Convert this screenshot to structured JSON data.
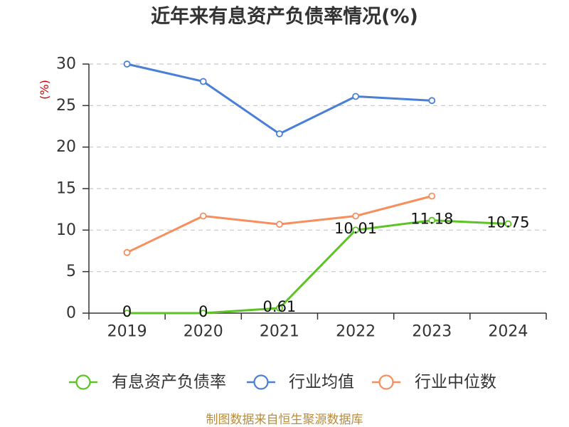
{
  "source_note": "制图数据来自恒生聚源数据库",
  "chart_data": {
    "type": "line",
    "title": "近年来有息资产负债率情况(%)",
    "xlabel": "",
    "ylabel": "(%)",
    "categories": [
      "2019",
      "2020",
      "2021",
      "2022",
      "2023",
      "2024"
    ],
    "ylim": [
      0,
      30
    ],
    "yticks": [
      0,
      5,
      10,
      15,
      20,
      25,
      30
    ],
    "grid": true,
    "legend_position": "bottom",
    "series": [
      {
        "name": "有息资产负债率",
        "color": "#5bc424",
        "show_labels": true,
        "values": [
          0,
          0,
          0.61,
          10.01,
          11.18,
          10.75
        ]
      },
      {
        "name": "行业均值",
        "color": "#4a7fd8",
        "show_labels": false,
        "values": [
          30,
          27.9,
          21.6,
          26.1,
          25.6,
          null
        ]
      },
      {
        "name": "行业中位数",
        "color": "#f78e5d",
        "show_labels": false,
        "values": [
          7.3,
          11.7,
          10.7,
          11.7,
          14.1,
          null
        ]
      }
    ]
  }
}
